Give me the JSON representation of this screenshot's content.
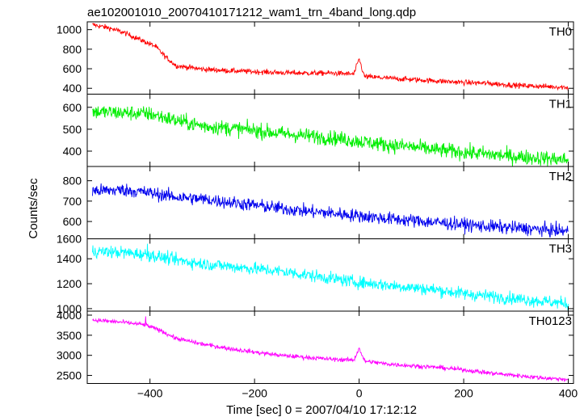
{
  "chart_data": {
    "type": "line",
    "title": "ae102001010_20070410171212_wam1_trn_4band_long.qdp",
    "xlabel": "Time [sec] 0 = 2007/04/10 17:12:12",
    "ylabel": "Counts/sec",
    "xlim": [
      -520,
      410
    ],
    "xticks": [
      -400,
      -200,
      0,
      200,
      400
    ],
    "xtick_labels": [
      "−400",
      "−200",
      "0",
      "200",
      "400"
    ],
    "grid": false,
    "panels": [
      {
        "name": "TH0",
        "color": "#ff0000",
        "ylim": [
          340,
          1080
        ],
        "yticks": [
          400,
          600,
          800,
          1000
        ],
        "ytick_labels": [
          "400",
          "600",
          "800",
          "1000"
        ],
        "x": [
          -510,
          -480,
          -450,
          -420,
          -390,
          -370,
          -350,
          -320,
          -300,
          -250,
          -200,
          -150,
          -100,
          -50,
          -10,
          0,
          10,
          50,
          100,
          150,
          200,
          250,
          300,
          350,
          400
        ],
        "y": [
          1050,
          1020,
          970,
          900,
          830,
          720,
          630,
          610,
          595,
          580,
          570,
          560,
          555,
          555,
          545,
          700,
          520,
          505,
          490,
          475,
          460,
          450,
          430,
          420,
          410
        ],
        "noise": 35,
        "spikes": [
          [
            0,
            700
          ]
        ]
      },
      {
        "name": "TH1",
        "color": "#00ee00",
        "ylim": [
          330,
          660
        ],
        "yticks": [
          400,
          500,
          600
        ],
        "ytick_labels": [
          "400",
          "500",
          "600"
        ],
        "x": [
          -510,
          -450,
          -400,
          -350,
          -300,
          -250,
          -200,
          -150,
          -100,
          -50,
          0,
          50,
          100,
          150,
          200,
          250,
          300,
          350,
          400
        ],
        "y": [
          580,
          575,
          570,
          540,
          515,
          505,
          495,
          480,
          470,
          460,
          445,
          430,
          420,
          405,
          395,
          385,
          375,
          368,
          360
        ],
        "noise": 45,
        "spikes": []
      },
      {
        "name": "TH2",
        "color": "#0000ee",
        "ylim": [
          515,
          870
        ],
        "yticks": [
          600,
          700,
          800
        ],
        "ytick_labels": [
          "600",
          "700",
          "800"
        ],
        "x": [
          -510,
          -450,
          -400,
          -350,
          -300,
          -250,
          -200,
          -150,
          -100,
          -50,
          0,
          50,
          100,
          150,
          200,
          250,
          300,
          350,
          400
        ],
        "y": [
          750,
          755,
          740,
          720,
          710,
          695,
          680,
          665,
          650,
          640,
          628,
          615,
          605,
          595,
          585,
          575,
          568,
          560,
          552
        ],
        "noise": 42,
        "spikes": []
      },
      {
        "name": "TH3",
        "color": "#00ffff",
        "ylim": [
          980,
          1560
        ],
        "yticks": [
          1000,
          1200,
          1400
        ],
        "ytick_labels": [
          "1000",
          "1200",
          "1400"
        ],
        "extra_tick_label": "1600",
        "x": [
          -510,
          -450,
          -400,
          -350,
          -300,
          -250,
          -200,
          -150,
          -100,
          -50,
          0,
          50,
          100,
          150,
          200,
          250,
          300,
          350,
          400
        ],
        "y": [
          1460,
          1450,
          1430,
          1390,
          1360,
          1340,
          1320,
          1300,
          1270,
          1240,
          1210,
          1190,
          1170,
          1150,
          1120,
          1100,
          1080,
          1060,
          1040
        ],
        "noise": 65,
        "spikes": [
          [
            -405,
            1520
          ]
        ]
      },
      {
        "name": "TH0123",
        "color": "#ff00ff",
        "ylim": [
          2300,
          4100
        ],
        "yticks": [
          2500,
          3000,
          3500,
          4000
        ],
        "ytick_labels": [
          "2500",
          "3000",
          "3500",
          "4000"
        ],
        "x": [
          -510,
          -450,
          -410,
          -380,
          -350,
          -300,
          -250,
          -200,
          -150,
          -100,
          -50,
          -10,
          0,
          10,
          50,
          100,
          150,
          200,
          250,
          300,
          350,
          400
        ],
        "y": [
          3880,
          3820,
          3760,
          3620,
          3420,
          3280,
          3170,
          3080,
          3000,
          2950,
          2900,
          2880,
          3180,
          2860,
          2790,
          2740,
          2700,
          2640,
          2560,
          2500,
          2440,
          2400
        ],
        "noise": 70,
        "spikes": [
          [
            0,
            3180
          ],
          [
            -408,
            3970
          ]
        ]
      }
    ]
  }
}
